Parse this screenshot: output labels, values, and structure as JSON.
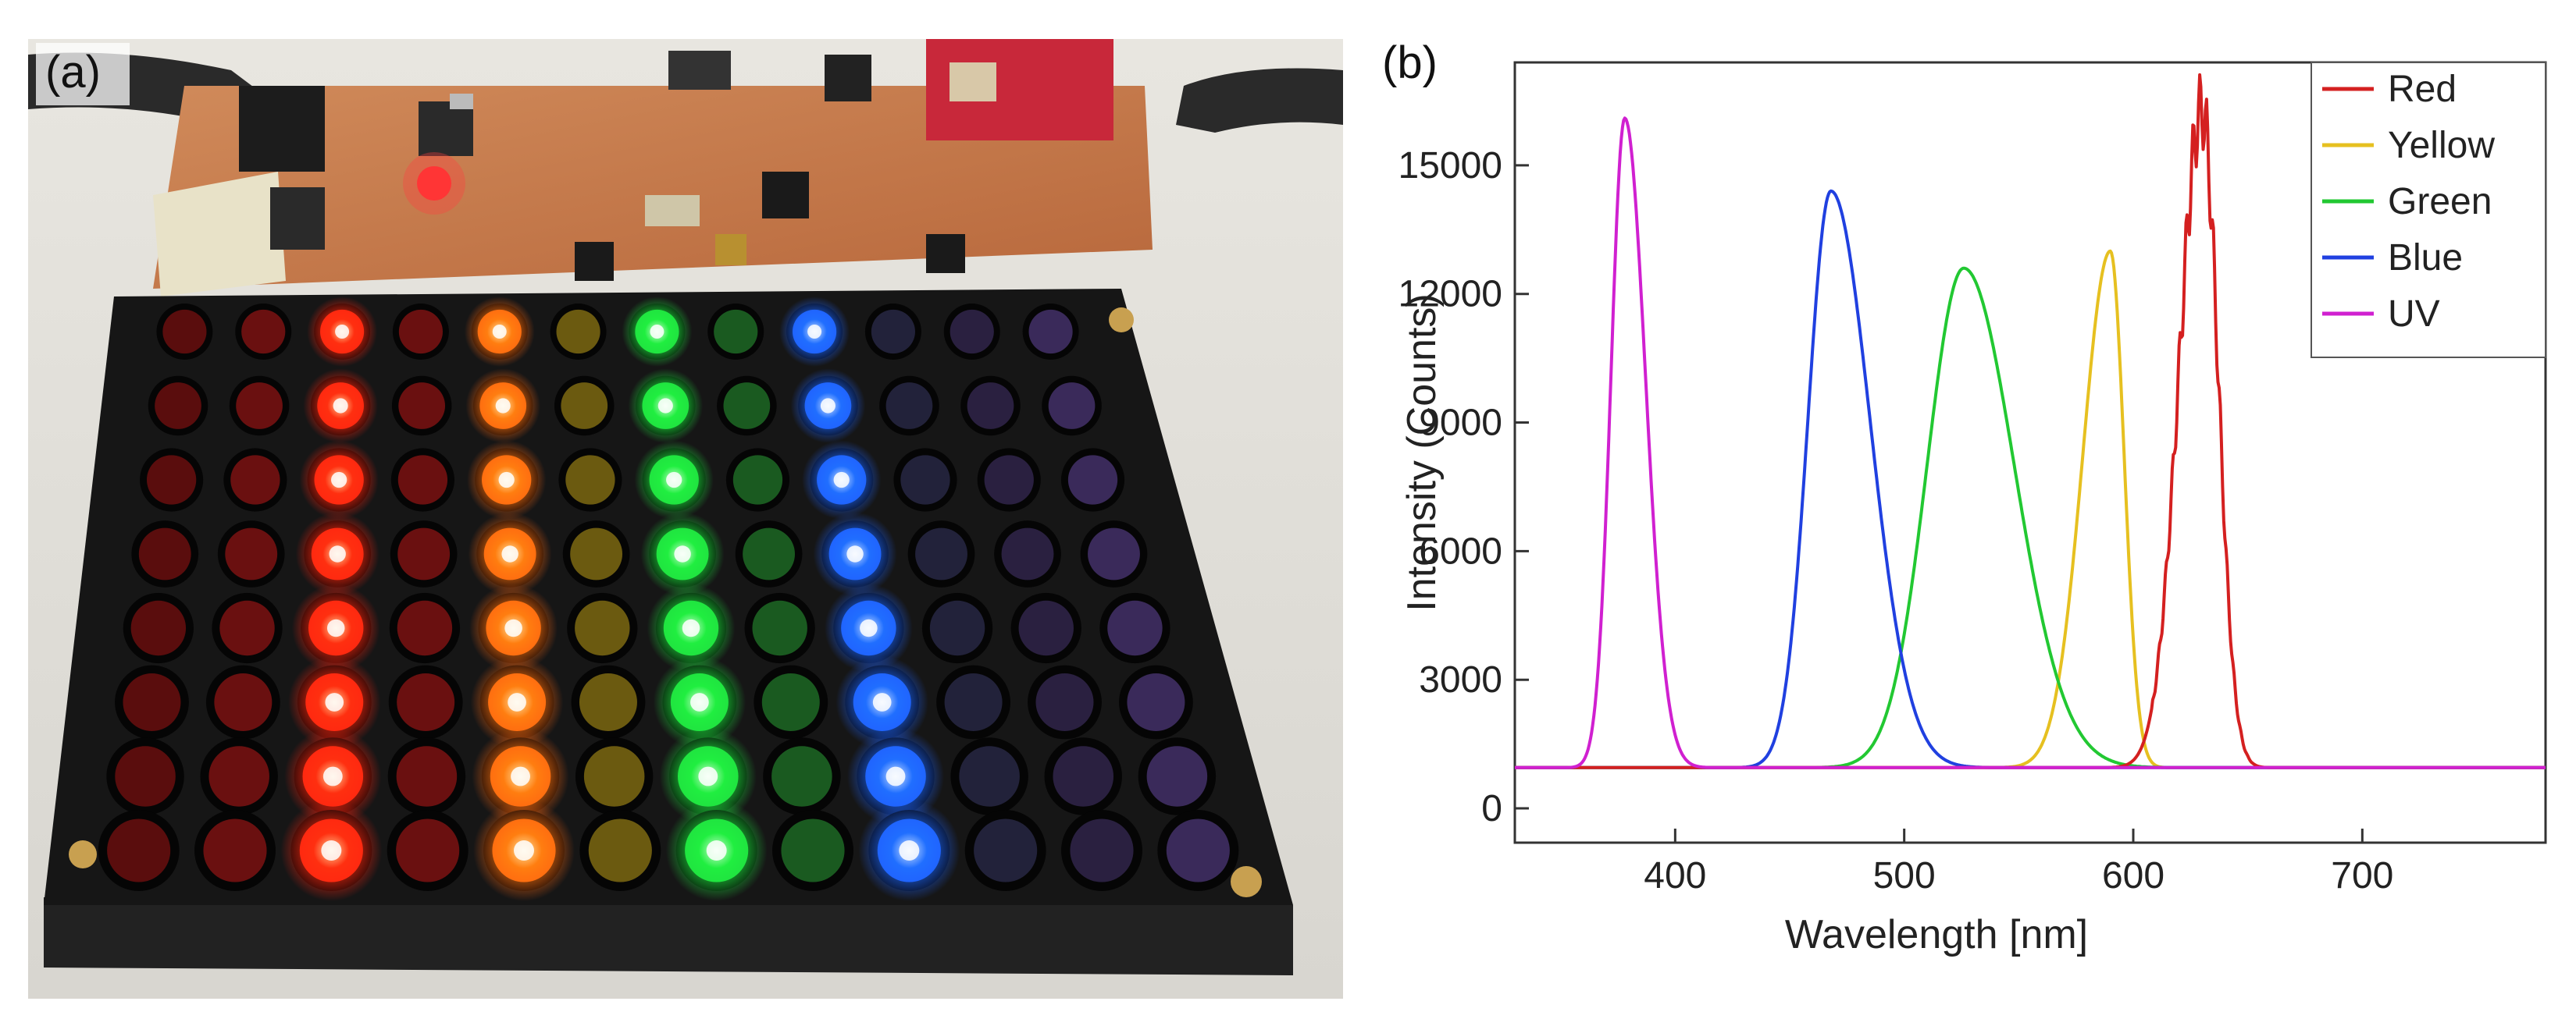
{
  "photo": {
    "panel_label": "(a)",
    "column_colors": [
      "#5a0d0d",
      "#6a1010",
      "#ff2a10",
      "#6a1010",
      "#ff6a10",
      "#6b5a10",
      "#20e040",
      "#1a5a20",
      "#2060ff",
      "#22223a",
      "#2a2040",
      "#3a2a5a"
    ],
    "lit_columns": [
      2,
      4,
      6,
      8
    ]
  },
  "chart_data": {
    "type": "line",
    "panel_label": "(b)",
    "xlabel": "Wavelength [nm]",
    "ylabel": "Intensity (Counts)",
    "xlim": [
      330,
      780
    ],
    "ylim": [
      -800,
      17400
    ],
    "xticks": [
      400,
      500,
      600,
      700
    ],
    "xtick_labels": [
      "400",
      "500",
      "600",
      "700"
    ],
    "yticks": [
      0,
      3000,
      6000,
      9000,
      12000,
      15000
    ],
    "ytick_labels": [
      "0",
      "3000",
      "6000",
      "9000",
      "12000",
      "15000"
    ],
    "baseline": 950,
    "legend_position": "top-right",
    "series": [
      {
        "name": "Red",
        "color": "#d42020",
        "peak_x": 630,
        "peak_y": 16300,
        "width_left": 10,
        "width_right": 7,
        "ripple": true
      },
      {
        "name": "Yellow",
        "color": "#e6c020",
        "peak_x": 590,
        "peak_y": 13000,
        "width_left": 12,
        "width_right": 6,
        "ripple": false
      },
      {
        "name": "Green",
        "color": "#22c832",
        "peak_x": 526,
        "peak_y": 12600,
        "width_left": 16,
        "width_right": 22,
        "ripple": false
      },
      {
        "name": "Blue",
        "color": "#2040e0",
        "peak_x": 468,
        "peak_y": 14400,
        "width_left": 10,
        "width_right": 17,
        "ripple": false
      },
      {
        "name": "UV",
        "color": "#d020d0",
        "peak_x": 378,
        "peak_y": 16100,
        "width_left": 6,
        "width_right": 9,
        "ripple": false
      }
    ]
  }
}
